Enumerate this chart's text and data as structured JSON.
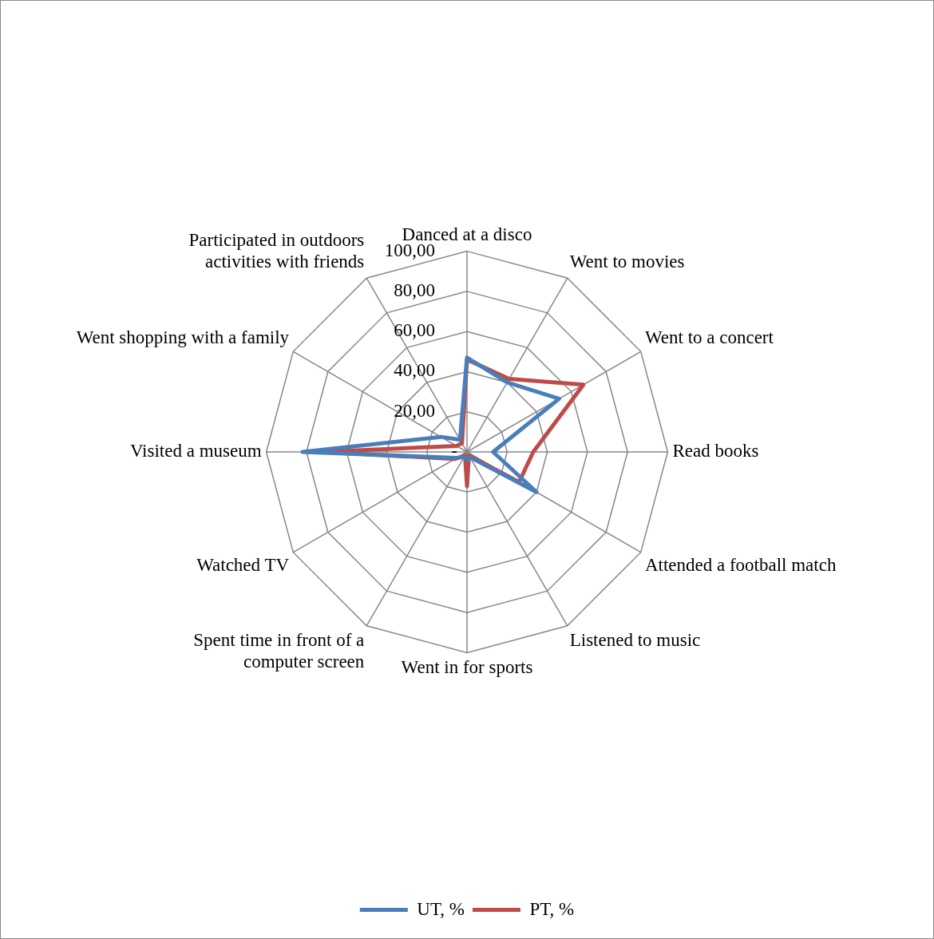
{
  "chart_data": {
    "type": "radar",
    "categories": [
      "Danced at a disco",
      "Went to movies",
      "Went to a concert",
      "Read books",
      "Attended a football match",
      "Listened to music",
      "Went in for sports",
      "Spent time in front of a computer screen",
      "Watched TV",
      "Visited a museum",
      "Went shopping with a family",
      "Participated in outdoors activities with friends"
    ],
    "series": [
      {
        "name": "UT, %",
        "color": "#4a7ebb",
        "values": [
          47,
          40,
          53,
          13,
          40,
          3,
          4,
          3,
          6,
          82,
          15,
          7
        ]
      },
      {
        "name": "PT, %",
        "color": "#be4b48",
        "values": [
          46,
          42,
          67,
          33,
          30,
          2,
          17,
          2,
          7,
          73,
          6,
          5
        ]
      }
    ],
    "ylim": [
      0,
      100
    ],
    "yticks": [
      {
        "value": 0,
        "label": "-"
      },
      {
        "value": 20,
        "label": "20,00"
      },
      {
        "value": 40,
        "label": "40,00"
      },
      {
        "value": 60,
        "label": "60,00"
      },
      {
        "value": 80,
        "label": "80,00"
      },
      {
        "value": 100,
        "label": "100,00"
      }
    ],
    "grid": true,
    "legend": "bottom"
  }
}
